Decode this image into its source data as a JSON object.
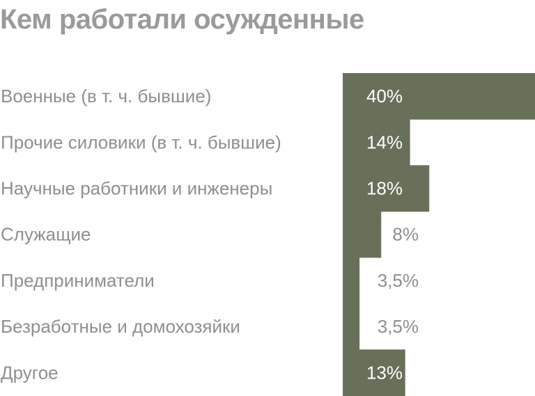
{
  "chart_data": {
    "type": "bar",
    "orientation": "horizontal",
    "title": "Кем работали осужденные",
    "categories": [
      "Военные (в т. ч. бывшие)",
      "Прочие силовики (в т. ч. бывшие)",
      "Научные работники и инженеры",
      "Служащие",
      "Предприниматели",
      "Безработные и домохозяйки",
      "Другое"
    ],
    "values": [
      40,
      14,
      18,
      8,
      3.5,
      3.5,
      13
    ],
    "value_labels": [
      "40%",
      "14%",
      "18%",
      "8%",
      "3,5%",
      "3,5%",
      "13%"
    ],
    "xlabel": "",
    "ylabel": "",
    "xlim": [
      0,
      40
    ],
    "grid": false,
    "legend": "none",
    "colors": {
      "bar": "#687059",
      "label_inside": "#ffffff",
      "label_outside": "#8f8f8f",
      "category_text": "#8f8f8f",
      "title": "#9a9a9a"
    }
  }
}
